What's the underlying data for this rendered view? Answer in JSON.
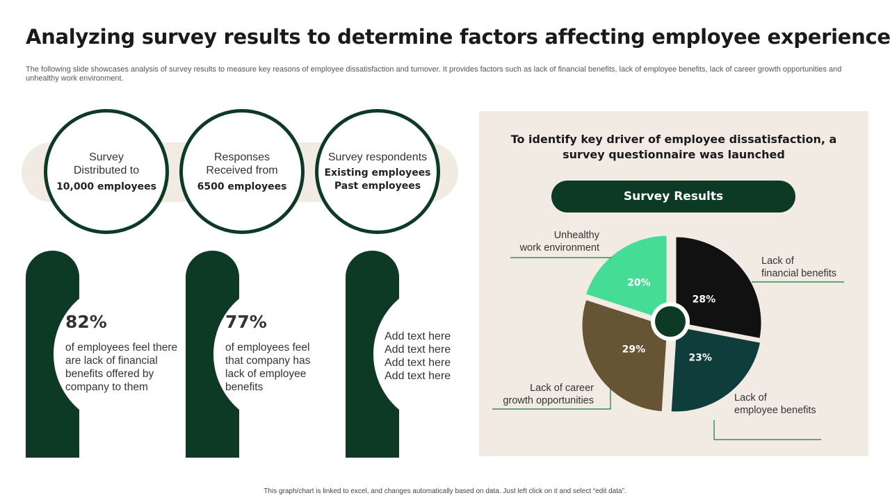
{
  "header": {
    "title": "Analyzing survey results to determine factors affecting employee experience",
    "subtitle": "The following slide showcases analysis of survey results to measure key reasons of employee dissatisfaction and turnover. It provides factors such as lack of financial benefits, lack of employee benefits, lack of career growth opportunities and unhealthy work environment."
  },
  "stats": [
    {
      "label": "Survey\nDistributed to",
      "value": "10,000 employees"
    },
    {
      "label": "Responses\nReceived from",
      "value": "6500 employees"
    },
    {
      "label": "Survey respondents",
      "value": "Existing employees",
      "value2": "Past employees"
    }
  ],
  "cards": [
    {
      "percent": "82%",
      "text": "of employees feel there are lack of financial benefits offered by company to them"
    },
    {
      "percent": "77%",
      "text": "of employees feel that company has lack of employee benefits"
    },
    {
      "text": "Add text here\nAdd text here\nAdd text here\nAdd text here"
    }
  ],
  "panel": {
    "heading": "To identify key driver of employee dissatisfaction, a survey questionnaire was launched",
    "results_label": "Survey Results"
  },
  "colors": {
    "dark_green": "#0c3a25",
    "beige": "#f1ebe4"
  },
  "chart_data": {
    "type": "pie",
    "categories": [
      "Lack of financial benefits",
      "Lack of employee benefits",
      "Lack of career growth opportunities",
      "Unhealthy work environment"
    ],
    "values": [
      28,
      23,
      29,
      20
    ],
    "labels": [
      "28%",
      "23%",
      "29%",
      "20%"
    ],
    "colors": [
      "#111111",
      "#0f3d3b",
      "#655534",
      "#45dd96"
    ],
    "category_lines": [
      [
        "Lack of",
        "financial benefits"
      ],
      [
        "Lack of",
        "employee benefits"
      ],
      [
        "Lack of career",
        "growth opportunities"
      ],
      [
        "Unhealthy",
        "work environment"
      ]
    ]
  },
  "footer": {
    "note": "This graph/chart is linked to excel, and changes automatically based on data. Just left click on it and select “edit data”."
  }
}
